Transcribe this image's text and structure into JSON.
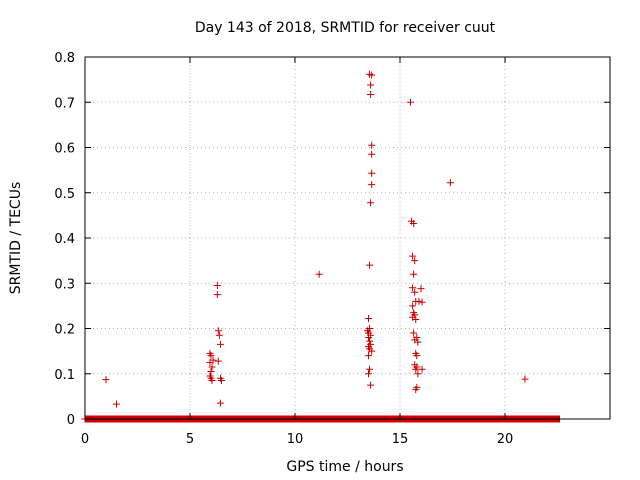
{
  "chart_data": {
    "type": "scatter",
    "title": "Day 143 of 2018, SRMTID for receiver cuut",
    "xlabel": "GPS time / hours",
    "ylabel": "SRMTID / TECUs",
    "xlim": [
      0,
      25
    ],
    "ylim": [
      0,
      0.8
    ],
    "xticks": [
      0,
      5,
      10,
      15,
      20
    ],
    "yticks": [
      0,
      0.1,
      0.2,
      0.3,
      0.4,
      0.5,
      0.6,
      0.7,
      0.8
    ],
    "ytick_labels": [
      "0",
      "0.1",
      "0.2",
      "0.3",
      "0.4",
      "0.5",
      "0.6",
      "0.7",
      "0.8"
    ],
    "grid": true,
    "marker": "+",
    "color": "#cc0000",
    "baseline": {
      "x_start": 0.0,
      "x_end": 22.6,
      "step": 0.0167,
      "y": 0.0
    },
    "series": [
      {
        "name": "SRMTID",
        "points": [
          [
            1.0,
            0.087
          ],
          [
            1.5,
            0.033
          ],
          [
            5.95,
            0.145
          ],
          [
            6.0,
            0.14
          ],
          [
            5.95,
            0.125
          ],
          [
            6.05,
            0.115
          ],
          [
            6.0,
            0.105
          ],
          [
            5.95,
            0.095
          ],
          [
            6.05,
            0.085
          ],
          [
            6.0,
            0.09
          ],
          [
            6.1,
            0.13
          ],
          [
            6.3,
            0.295
          ],
          [
            6.3,
            0.275
          ],
          [
            6.35,
            0.195
          ],
          [
            6.4,
            0.185
          ],
          [
            6.45,
            0.165
          ],
          [
            6.35,
            0.128
          ],
          [
            6.45,
            0.09
          ],
          [
            6.5,
            0.085
          ],
          [
            6.45,
            0.035
          ],
          [
            11.15,
            0.32
          ],
          [
            13.55,
            0.762
          ],
          [
            13.65,
            0.76
          ],
          [
            13.6,
            0.738
          ],
          [
            13.6,
            0.717
          ],
          [
            13.65,
            0.605
          ],
          [
            13.65,
            0.585
          ],
          [
            13.65,
            0.543
          ],
          [
            13.65,
            0.518
          ],
          [
            13.6,
            0.478
          ],
          [
            13.55,
            0.34
          ],
          [
            13.5,
            0.222
          ],
          [
            13.55,
            0.2
          ],
          [
            13.45,
            0.195
          ],
          [
            13.5,
            0.19
          ],
          [
            13.6,
            0.185
          ],
          [
            13.5,
            0.18
          ],
          [
            13.55,
            0.172
          ],
          [
            13.6,
            0.165
          ],
          [
            13.5,
            0.16
          ],
          [
            13.55,
            0.155
          ],
          [
            13.65,
            0.15
          ],
          [
            13.5,
            0.14
          ],
          [
            13.55,
            0.11
          ],
          [
            13.5,
            0.1
          ],
          [
            13.6,
            0.075
          ],
          [
            15.5,
            0.7
          ],
          [
            15.55,
            0.437
          ],
          [
            15.65,
            0.432
          ],
          [
            15.6,
            0.36
          ],
          [
            15.7,
            0.35
          ],
          [
            15.65,
            0.32
          ],
          [
            15.6,
            0.29
          ],
          [
            15.7,
            0.28
          ],
          [
            15.75,
            0.26
          ],
          [
            15.6,
            0.25
          ],
          [
            15.65,
            0.235
          ],
          [
            15.7,
            0.23
          ],
          [
            15.6,
            0.225
          ],
          [
            15.75,
            0.22
          ],
          [
            15.65,
            0.19
          ],
          [
            15.8,
            0.18
          ],
          [
            15.7,
            0.175
          ],
          [
            15.85,
            0.17
          ],
          [
            15.75,
            0.145
          ],
          [
            15.8,
            0.14
          ],
          [
            15.7,
            0.12
          ],
          [
            15.8,
            0.115
          ],
          [
            15.75,
            0.11
          ],
          [
            15.85,
            0.1
          ],
          [
            15.8,
            0.07
          ],
          [
            15.75,
            0.065
          ],
          [
            16.0,
            0.288
          ],
          [
            16.05,
            0.258
          ],
          [
            15.9,
            0.26
          ],
          [
            16.05,
            0.11
          ],
          [
            17.4,
            0.522
          ],
          [
            20.95,
            0.088
          ]
        ]
      }
    ]
  }
}
